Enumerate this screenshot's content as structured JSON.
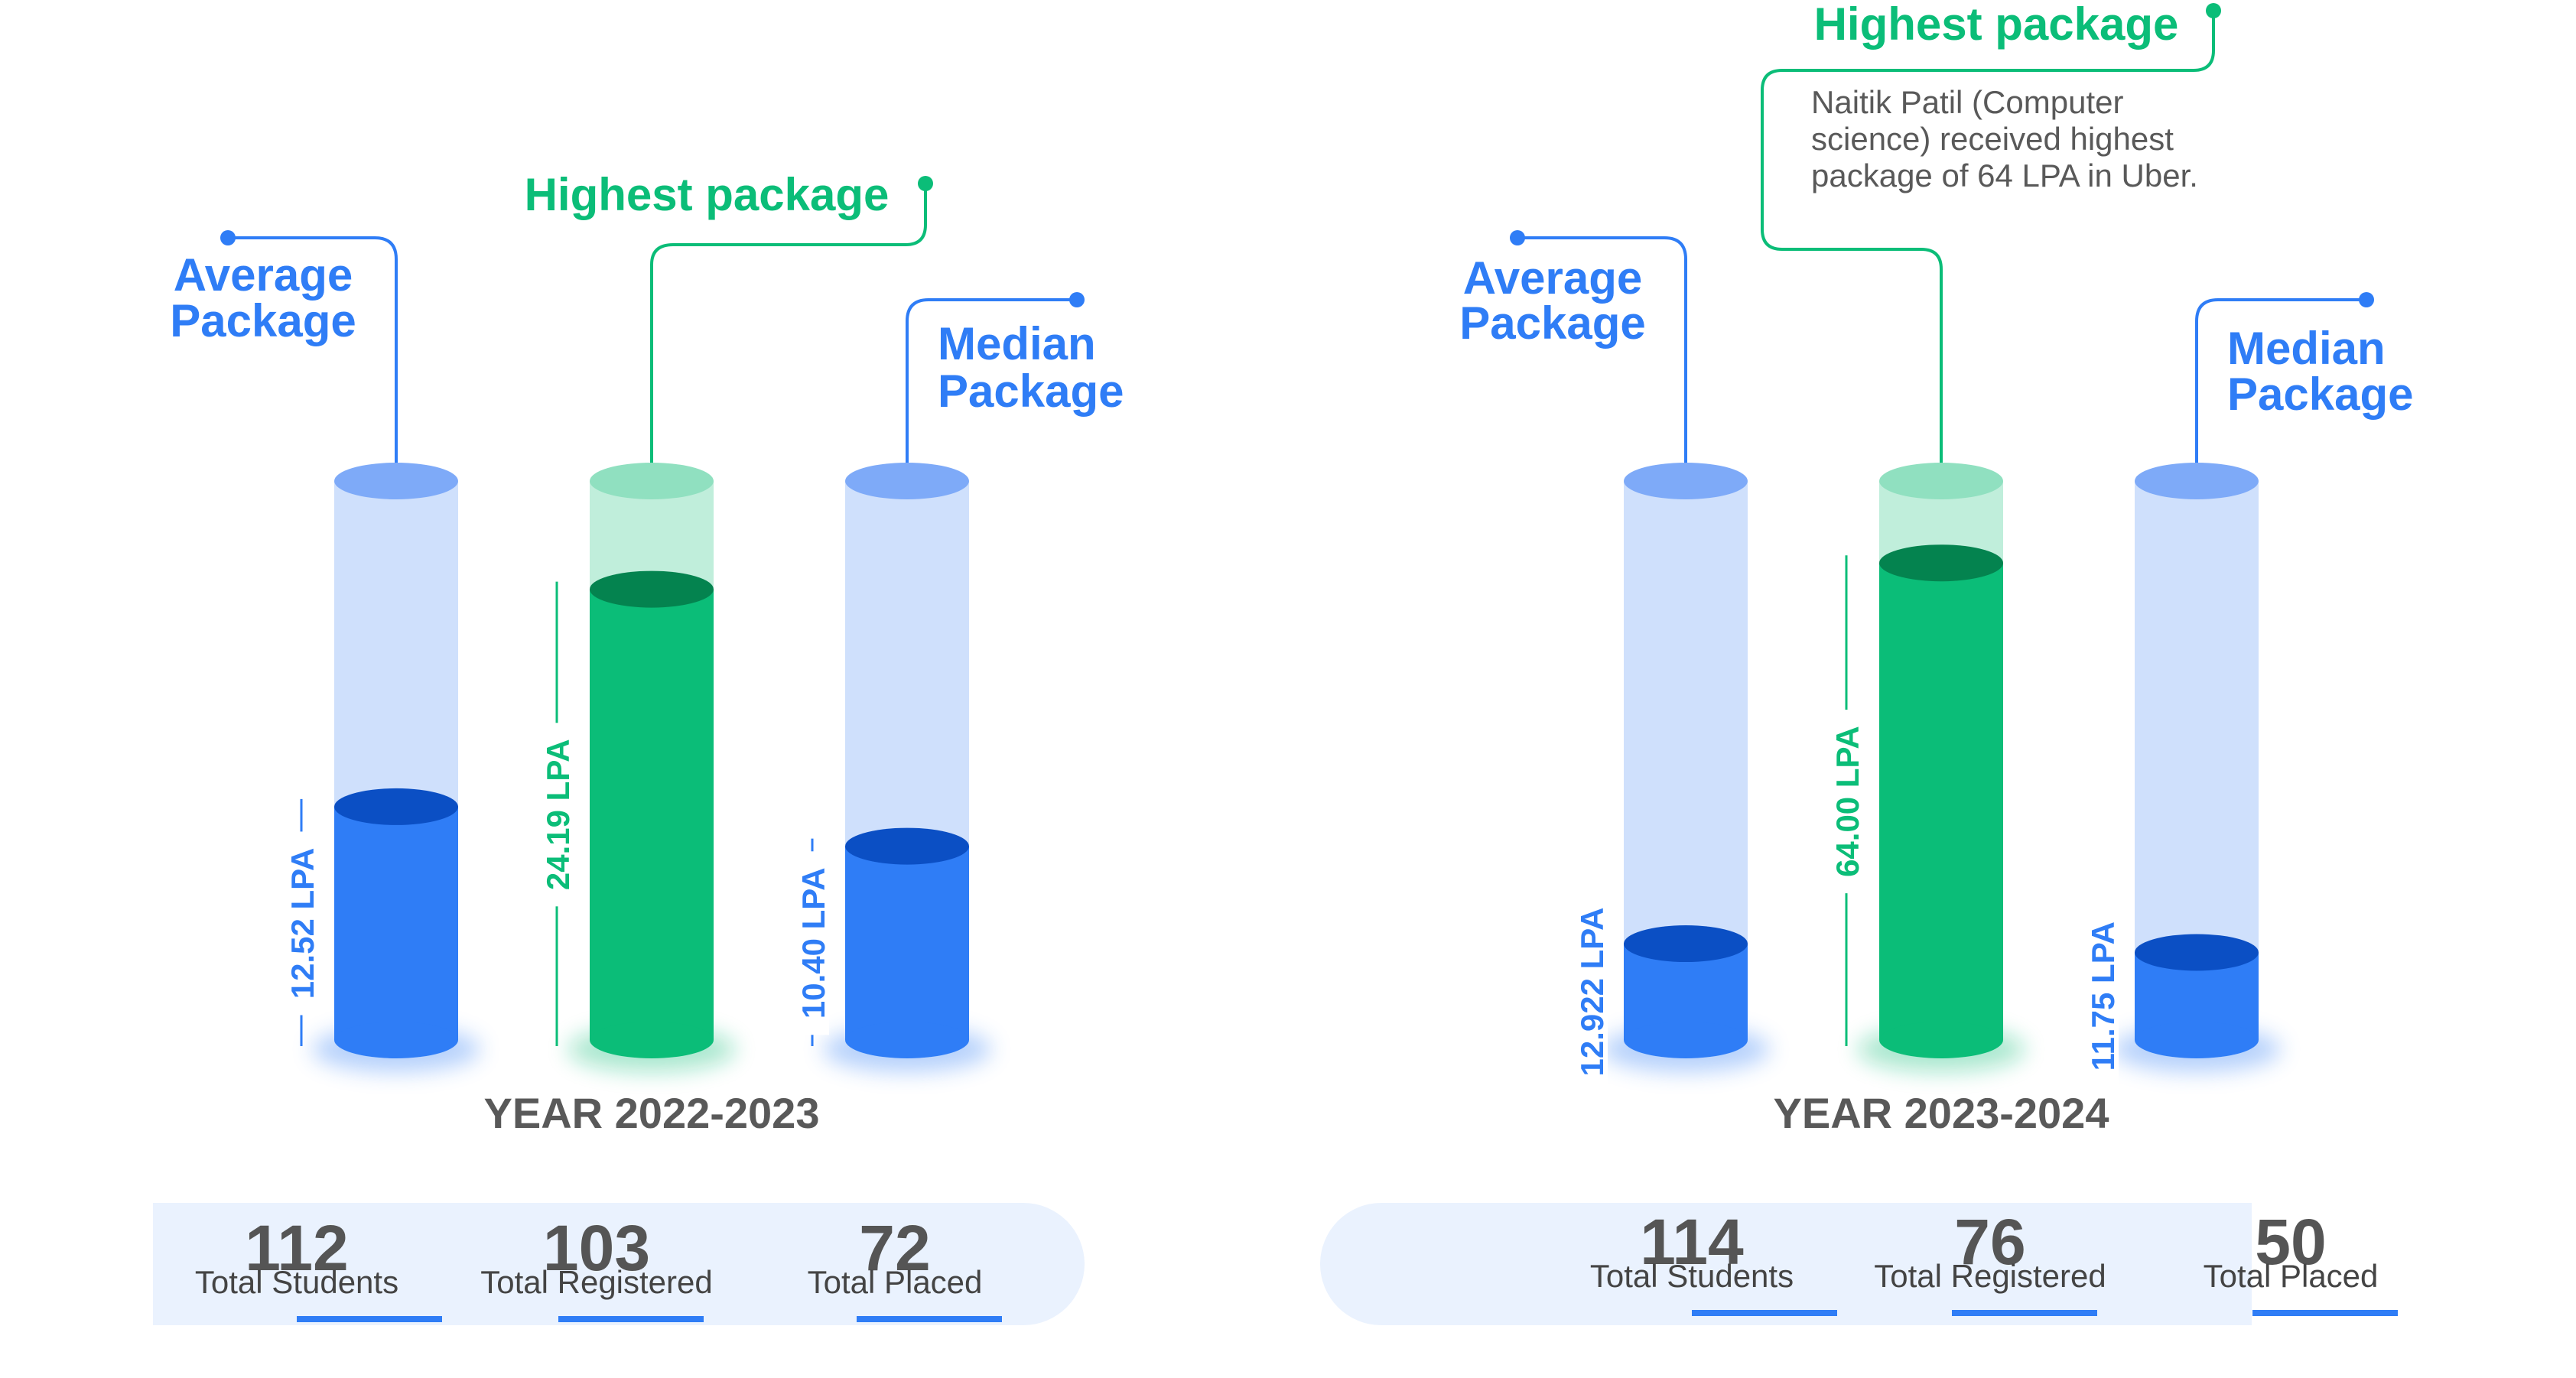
{
  "colors": {
    "blue": "#2f7df6",
    "blue_top": "#0b4fc4",
    "blue_tube": "#cfe0fc",
    "blue_rim": "#7eaaf8",
    "green": "#0bbd78",
    "green_top": "#04834f",
    "green_tube": "#c0eedb",
    "green_rim": "#90e0c0",
    "gray_text": "#595959",
    "stats_bg": "#eaf2fe",
    "callout_blue": "#2f7df6",
    "callout_green": "#0bbd78"
  },
  "chart_data": [
    {
      "type": "bar",
      "year_label": "YEAR 2022-2023",
      "categories": [
        "Average Package",
        "Highest package",
        "Median Package"
      ],
      "values": [
        12.52,
        24.19,
        10.4
      ],
      "value_labels": [
        "12.52 LPA",
        "24.19 LPA",
        "10.40 LPA"
      ],
      "callouts": [
        {
          "text": "Average Package",
          "color": "blue"
        },
        {
          "text": "Highest package",
          "color": "green"
        },
        {
          "text": "Median Package",
          "color": "blue"
        }
      ],
      "stats": [
        {
          "value": "112",
          "label": "Total Students"
        },
        {
          "value": "103",
          "label": "Total Registered"
        },
        {
          "value": "72",
          "label": "Total Placed"
        }
      ]
    },
    {
      "type": "bar",
      "year_label": "YEAR 2023-2024",
      "categories": [
        "Average Package",
        "Highest package",
        "Median Package"
      ],
      "values": [
        12.922,
        64.0,
        11.75
      ],
      "value_labels": [
        "12.922 LPA",
        "64.00 LPA",
        "11.75 LPA"
      ],
      "callouts": [
        {
          "text": "Average Package",
          "color": "blue"
        },
        {
          "text": "Highest package",
          "color": "green"
        },
        {
          "text": "Median Package",
          "color": "blue"
        }
      ],
      "note": "Naitik Patil (Computer science) received highest package of 64 LPA in Uber.",
      "stats": [
        {
          "value": "114",
          "label": "Total Students"
        },
        {
          "value": "76",
          "label": "Total Registered"
        },
        {
          "value": "50",
          "label": "Total Placed"
        }
      ]
    }
  ]
}
